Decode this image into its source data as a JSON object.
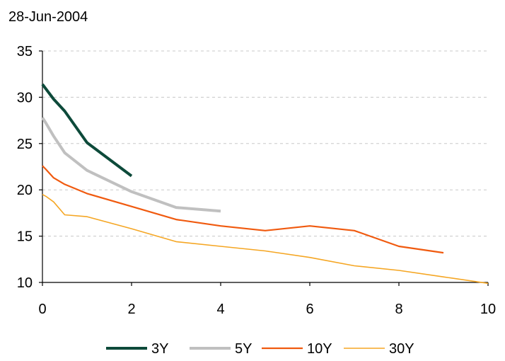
{
  "chart_data": {
    "type": "line",
    "title": "28-Jun-2004",
    "xlim": [
      0,
      10
    ],
    "ylim": [
      10,
      35
    ],
    "x_ticks": [
      0,
      2,
      4,
      6,
      8,
      10
    ],
    "y_ticks": [
      10,
      15,
      20,
      25,
      30,
      35
    ],
    "grid": "horizontal dashed",
    "legend_position": "bottom",
    "series": [
      {
        "name": "3Y",
        "color": "#0d4a3a",
        "points": [
          [
            0,
            31.4
          ],
          [
            0.25,
            29.8
          ],
          [
            0.5,
            28.5
          ],
          [
            1,
            25.1
          ],
          [
            2,
            21.5
          ]
        ]
      },
      {
        "name": "5Y",
        "color": "#c0c0c0",
        "points": [
          [
            0,
            27.8
          ],
          [
            0.08,
            27.2
          ],
          [
            0.25,
            25.8
          ],
          [
            0.5,
            24.0
          ],
          [
            1,
            22.1
          ],
          [
            2,
            19.8
          ],
          [
            3,
            18.1
          ],
          [
            4,
            17.7
          ]
        ]
      },
      {
        "name": "10Y",
        "color": "#f05a0f",
        "points": [
          [
            0,
            22.6
          ],
          [
            0.08,
            22.2
          ],
          [
            0.25,
            21.3
          ],
          [
            0.5,
            20.6
          ],
          [
            1,
            19.6
          ],
          [
            2,
            18.2
          ],
          [
            3,
            16.8
          ],
          [
            4,
            16.1
          ],
          [
            5,
            15.6
          ],
          [
            6,
            16.1
          ],
          [
            7,
            15.6
          ],
          [
            8,
            13.9
          ],
          [
            9,
            13.2
          ]
        ]
      },
      {
        "name": "30Y",
        "color": "#f5a623",
        "points": [
          [
            0,
            19.5
          ],
          [
            0.08,
            19.3
          ],
          [
            0.25,
            18.7
          ],
          [
            0.5,
            17.3
          ],
          [
            1,
            17.1
          ],
          [
            2,
            15.8
          ],
          [
            3,
            14.4
          ],
          [
            4,
            13.9
          ],
          [
            5,
            13.4
          ],
          [
            6,
            12.7
          ],
          [
            7,
            11.8
          ],
          [
            8,
            11.3
          ],
          [
            9,
            10.6
          ],
          [
            10,
            9.9
          ]
        ]
      }
    ]
  }
}
